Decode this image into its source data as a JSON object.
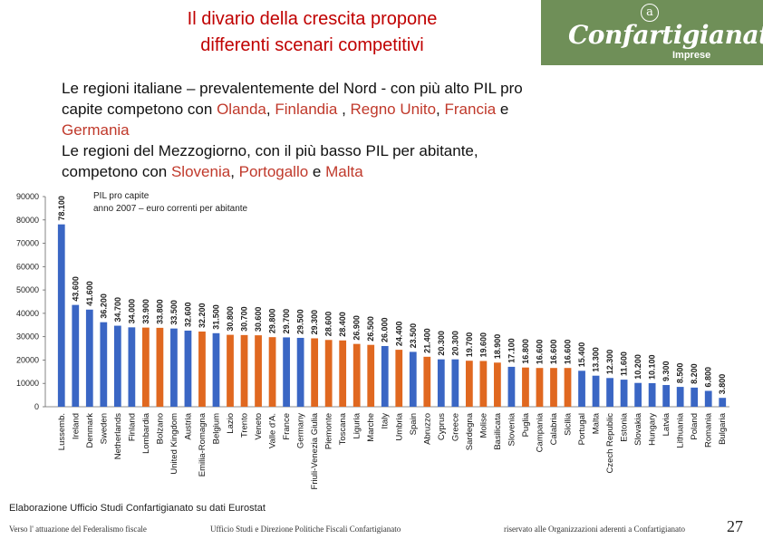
{
  "header": {
    "title_line1": "Il divario della crescita propone",
    "title_line2": "differenti scenari competitivi",
    "logo_text": "Confartigianato",
    "logo_sub": "Imprese",
    "logo_symbol": "a"
  },
  "intro": {
    "line1": "Le regioni italiane – prevalentemente del Nord - con più alto PIL pro",
    "line2a": "capite competono con ",
    "c1": "Olanda",
    "sep1": ", ",
    "c2": "Finlandia",
    "sep2": " , ",
    "c3": "Regno Unito",
    "sep3": ", ",
    "c4": "Francia",
    "and1": " e",
    "c5": "Germania",
    "line4": "Le regioni del Mezzogiorno, con il più basso PIL per abitante,",
    "line5a": "competono con ",
    "c6": "Slovenia",
    "sep4": ", ",
    "c7": "Portogallo",
    "and2": " e ",
    "c8": "Malta"
  },
  "chart_data": {
    "type": "bar",
    "subtitle_line1": "PIL pro capite",
    "subtitle_line2": "anno 2007 – euro correnti per abitante",
    "ylim": [
      0,
      90000
    ],
    "yticks": [
      "0",
      "10000",
      "20000",
      "30000",
      "40000",
      "50000",
      "60000",
      "70000",
      "80000",
      "90000"
    ],
    "colors": {
      "country": "#3a66c4",
      "italy_region": "#e06820"
    },
    "categories": [
      "Lussemb.",
      "Ireland",
      "Denmark",
      "Sweden",
      "Netherlands",
      "Finland",
      "Lombardia",
      "Bolzano",
      "United Kingdom",
      "Austria",
      "Emilia-Romagna",
      "Belgium",
      "Lazio",
      "Trento",
      "Veneto",
      "Valle d'A.",
      "France",
      "Germany",
      "Friuli-Venezia Giulia",
      "Piemonte",
      "Toscana",
      "Liguria",
      "Marche",
      "Italy",
      "Umbria",
      "Spain",
      "Abruzzo",
      "Cyprus",
      "Greece",
      "Sardegna",
      "Molise",
      "Basilicata",
      "Slovenia",
      "Puglia",
      "Campania",
      "Calabria",
      "Sicilia",
      "Portugal",
      "Malta",
      "Czech Republic",
      "Estonia",
      "Slovakia",
      "Hungary",
      "Latvia",
      "Lithuania",
      "Poland",
      "Romania",
      "Bulgaria"
    ],
    "values": [
      78100,
      43600,
      41600,
      36200,
      34700,
      34000,
      33900,
      33800,
      33500,
      32600,
      32200,
      31500,
      30800,
      30700,
      30600,
      29800,
      29700,
      29500,
      29300,
      28600,
      28400,
      26900,
      26500,
      26000,
      24400,
      23500,
      21400,
      20300,
      20300,
      19700,
      19600,
      18900,
      17100,
      16800,
      16600,
      16600,
      16600,
      15400,
      13300,
      12300,
      11600,
      10200,
      10100,
      9300,
      8500,
      8200,
      6800,
      3800
    ],
    "labels": [
      "78.100",
      "43.600",
      "41.600",
      "36.200",
      "34.700",
      "34.000",
      "33.900",
      "33.800",
      "33.500",
      "32.600",
      "32.200",
      "31.500",
      "30.800",
      "30.700",
      "30.600",
      "29.800",
      "29.700",
      "29.500",
      "29.300",
      "28.600",
      "28.400",
      "26.900",
      "26.500",
      "26.000",
      "24.400",
      "23.500",
      "21.400",
      "20.300",
      "20.300",
      "19.700",
      "19.600",
      "18.900",
      "17.100",
      "16.800",
      "16.600",
      "16.600",
      "16.600",
      "15.400",
      "13.300",
      "12.300",
      "11.600",
      "10.200",
      "10.100",
      "9.300",
      "8.500",
      "8.200",
      "6.800",
      "3.800"
    ],
    "is_region": [
      false,
      false,
      false,
      false,
      false,
      false,
      true,
      true,
      false,
      false,
      true,
      false,
      true,
      true,
      true,
      true,
      false,
      false,
      true,
      true,
      true,
      true,
      true,
      false,
      true,
      false,
      true,
      false,
      false,
      true,
      true,
      true,
      false,
      true,
      true,
      true,
      true,
      false,
      false,
      false,
      false,
      false,
      false,
      false,
      false,
      false,
      false,
      false
    ]
  },
  "footer": {
    "source": "Elaborazione Ufficio Studi Confartigianato su dati Eurostat",
    "left": "Verso l' attuazione del Federalismo fiscale",
    "mid": "Ufficio Studi e Direzione Politiche Fiscali Confartigianato",
    "right": "riservato alle Organizzazioni aderenti a Confartigianato",
    "page": "27"
  }
}
